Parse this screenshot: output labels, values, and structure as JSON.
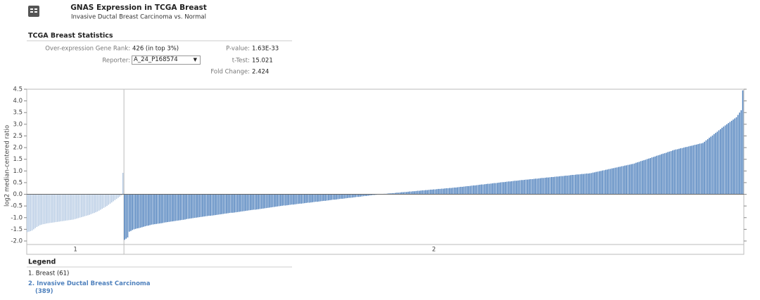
{
  "header": {
    "title": "GNAS Expression in TCGA Breast",
    "subtitle": "Invasive Ductal Breast Carcinoma vs. Normal"
  },
  "statistics": {
    "title": "TCGA Breast Statistics",
    "left": [
      {
        "label": "Over-expression Gene Rank:",
        "value": "426 (in top 3%)"
      },
      {
        "label": "Reporter:",
        "value": "A_24_P168574"
      }
    ],
    "right": [
      {
        "label": "P-value:",
        "value": "1.63E-33"
      },
      {
        "label": "t-Test:",
        "value": "15.021"
      },
      {
        "label": "Fold Change:",
        "value": "2.424"
      }
    ]
  },
  "chart_data": {
    "type": "bar",
    "ylabel": "log2 median-centered ratio",
    "ylim": [
      -2.15,
      4.5
    ],
    "yticks": [
      4.5,
      {
        "value": 4,
        "label": "4.0"
      },
      3.5,
      {
        "value": 3,
        "label": "3.0"
      },
      2.5,
      {
        "value": 2,
        "label": "2.0"
      },
      1.5,
      {
        "value": 1,
        "label": "1.0"
      },
      0.5,
      {
        "value": 0,
        "label": "0.0"
      },
      -0.5,
      {
        "value": -1,
        "label": "-1.0"
      },
      -1.5,
      {
        "value": -2,
        "label": "-2.0"
      }
    ],
    "series": [
      {
        "name": "1",
        "color": "#b8cce4",
        "values": [
          -1.62,
          -1.6,
          -1.58,
          -1.55,
          -1.5,
          -1.45,
          -1.4,
          -1.36,
          -1.32,
          -1.3,
          -1.28,
          -1.27,
          -1.25,
          -1.24,
          -1.23,
          -1.22,
          -1.21,
          -1.2,
          -1.19,
          -1.18,
          -1.17,
          -1.16,
          -1.15,
          -1.14,
          -1.13,
          -1.12,
          -1.11,
          -1.1,
          -1.09,
          -1.08,
          -1.06,
          -1.04,
          -1.02,
          -1.0,
          -0.98,
          -0.96,
          -0.94,
          -0.92,
          -0.9,
          -0.88,
          -0.85,
          -0.82,
          -0.8,
          -0.77,
          -0.74,
          -0.7,
          -0.66,
          -0.62,
          -0.58,
          -0.54,
          -0.5,
          -0.45,
          -0.4,
          -0.35,
          -0.3,
          -0.25,
          -0.2,
          -0.15,
          -0.1,
          -0.05,
          0.92
        ]
      },
      {
        "name": "2",
        "color": "#4f81bd",
        "values": [
          -1.95,
          -1.9,
          -1.85,
          -1.6,
          -1.57,
          -1.53,
          -1.5,
          -1.48,
          -1.46,
          -1.45,
          -1.43,
          -1.41,
          -1.39,
          -1.37,
          -1.35,
          -1.34,
          -1.32,
          -1.3,
          -1.29,
          -1.28,
          -1.27,
          -1.26,
          -1.25,
          -1.24,
          -1.23,
          -1.21,
          -1.2,
          -1.19,
          -1.18,
          -1.17,
          -1.16,
          -1.15,
          -1.14,
          -1.13,
          -1.12,
          -1.11,
          -1.1,
          -1.09,
          -1.08,
          -1.06,
          -1.05,
          -1.04,
          -1.03,
          -1.02,
          -1.01,
          -1.0,
          -0.99,
          -0.98,
          -0.97,
          -0.96,
          -0.95,
          -0.94,
          -0.93,
          -0.92,
          -0.92,
          -0.91,
          -0.9,
          -0.89,
          -0.88,
          -0.87,
          -0.86,
          -0.85,
          -0.84,
          -0.83,
          -0.82,
          -0.81,
          -0.8,
          -0.79,
          -0.79,
          -0.78,
          -0.77,
          -0.76,
          -0.75,
          -0.74,
          -0.73,
          -0.72,
          -0.71,
          -0.7,
          -0.69,
          -0.68,
          -0.67,
          -0.66,
          -0.66,
          -0.65,
          -0.64,
          -0.63,
          -0.62,
          -0.61,
          -0.6,
          -0.59,
          -0.58,
          -0.57,
          -0.56,
          -0.55,
          -0.54,
          -0.53,
          -0.52,
          -0.51,
          -0.5,
          -0.49,
          -0.48,
          -0.48,
          -0.47,
          -0.46,
          -0.45,
          -0.44,
          -0.44,
          -0.43,
          -0.42,
          -0.41,
          -0.4,
          -0.4,
          -0.39,
          -0.38,
          -0.37,
          -0.36,
          -0.36,
          -0.35,
          -0.34,
          -0.33,
          -0.32,
          -0.32,
          -0.31,
          -0.3,
          -0.29,
          -0.28,
          -0.28,
          -0.27,
          -0.26,
          -0.25,
          -0.24,
          -0.23,
          -0.23,
          -0.22,
          -0.21,
          -0.2,
          -0.19,
          -0.19,
          -0.18,
          -0.17,
          -0.16,
          -0.15,
          -0.15,
          -0.14,
          -0.13,
          -0.12,
          -0.11,
          -0.11,
          -0.1,
          -0.09,
          -0.08,
          -0.07,
          -0.07,
          -0.06,
          -0.05,
          -0.04,
          -0.03,
          -0.03,
          -0.02,
          -0.01,
          0.0,
          0.01,
          0.01,
          0.02,
          0.02,
          0.03,
          0.04,
          0.04,
          0.05,
          0.05,
          0.06,
          0.07,
          0.07,
          0.08,
          0.09,
          0.09,
          0.1,
          0.1,
          0.11,
          0.12,
          0.12,
          0.13,
          0.13,
          0.14,
          0.15,
          0.15,
          0.16,
          0.17,
          0.17,
          0.18,
          0.18,
          0.19,
          0.2,
          0.2,
          0.21,
          0.21,
          0.22,
          0.23,
          0.23,
          0.24,
          0.24,
          0.25,
          0.26,
          0.26,
          0.27,
          0.27,
          0.28,
          0.29,
          0.29,
          0.3,
          0.31,
          0.32,
          0.32,
          0.33,
          0.34,
          0.35,
          0.35,
          0.36,
          0.37,
          0.38,
          0.38,
          0.39,
          0.4,
          0.41,
          0.42,
          0.42,
          0.43,
          0.44,
          0.45,
          0.45,
          0.46,
          0.47,
          0.48,
          0.48,
          0.49,
          0.5,
          0.51,
          0.52,
          0.52,
          0.53,
          0.54,
          0.55,
          0.55,
          0.56,
          0.57,
          0.58,
          0.58,
          0.59,
          0.6,
          0.61,
          0.61,
          0.62,
          0.63,
          0.63,
          0.64,
          0.65,
          0.65,
          0.66,
          0.67,
          0.67,
          0.68,
          0.69,
          0.7,
          0.7,
          0.71,
          0.72,
          0.72,
          0.73,
          0.74,
          0.74,
          0.75,
          0.76,
          0.76,
          0.77,
          0.78,
          0.78,
          0.79,
          0.8,
          0.8,
          0.81,
          0.82,
          0.83,
          0.83,
          0.84,
          0.85,
          0.85,
          0.86,
          0.87,
          0.87,
          0.88,
          0.89,
          0.89,
          0.9,
          0.91,
          0.93,
          0.94,
          0.96,
          0.97,
          0.99,
          1.0,
          1.02,
          1.03,
          1.05,
          1.06,
          1.08,
          1.09,
          1.11,
          1.12,
          1.14,
          1.15,
          1.17,
          1.18,
          1.2,
          1.21,
          1.23,
          1.24,
          1.26,
          1.27,
          1.29,
          1.3,
          1.32,
          1.35,
          1.37,
          1.39,
          1.42,
          1.44,
          1.46,
          1.48,
          1.51,
          1.53,
          1.55,
          1.58,
          1.6,
          1.62,
          1.65,
          1.67,
          1.69,
          1.72,
          1.74,
          1.76,
          1.78,
          1.81,
          1.83,
          1.85,
          1.88,
          1.9,
          1.92,
          1.93,
          1.95,
          1.97,
          1.98,
          2.0,
          2.02,
          2.03,
          2.05,
          2.07,
          2.08,
          2.1,
          2.12,
          2.13,
          2.15,
          2.17,
          2.18,
          2.2,
          2.25,
          2.31,
          2.36,
          2.42,
          2.47,
          2.52,
          2.58,
          2.63,
          2.68,
          2.74,
          2.79,
          2.85,
          2.9,
          2.95,
          3.0,
          3.05,
          3.1,
          3.15,
          3.2,
          3.25,
          3.3,
          3.4,
          3.5,
          3.6,
          4.45
        ]
      }
    ]
  },
  "legend": {
    "title": "Legend",
    "items": [
      "1. Breast (61)",
      "2. Invasive Ductal Breast Carcinoma (389)"
    ]
  }
}
